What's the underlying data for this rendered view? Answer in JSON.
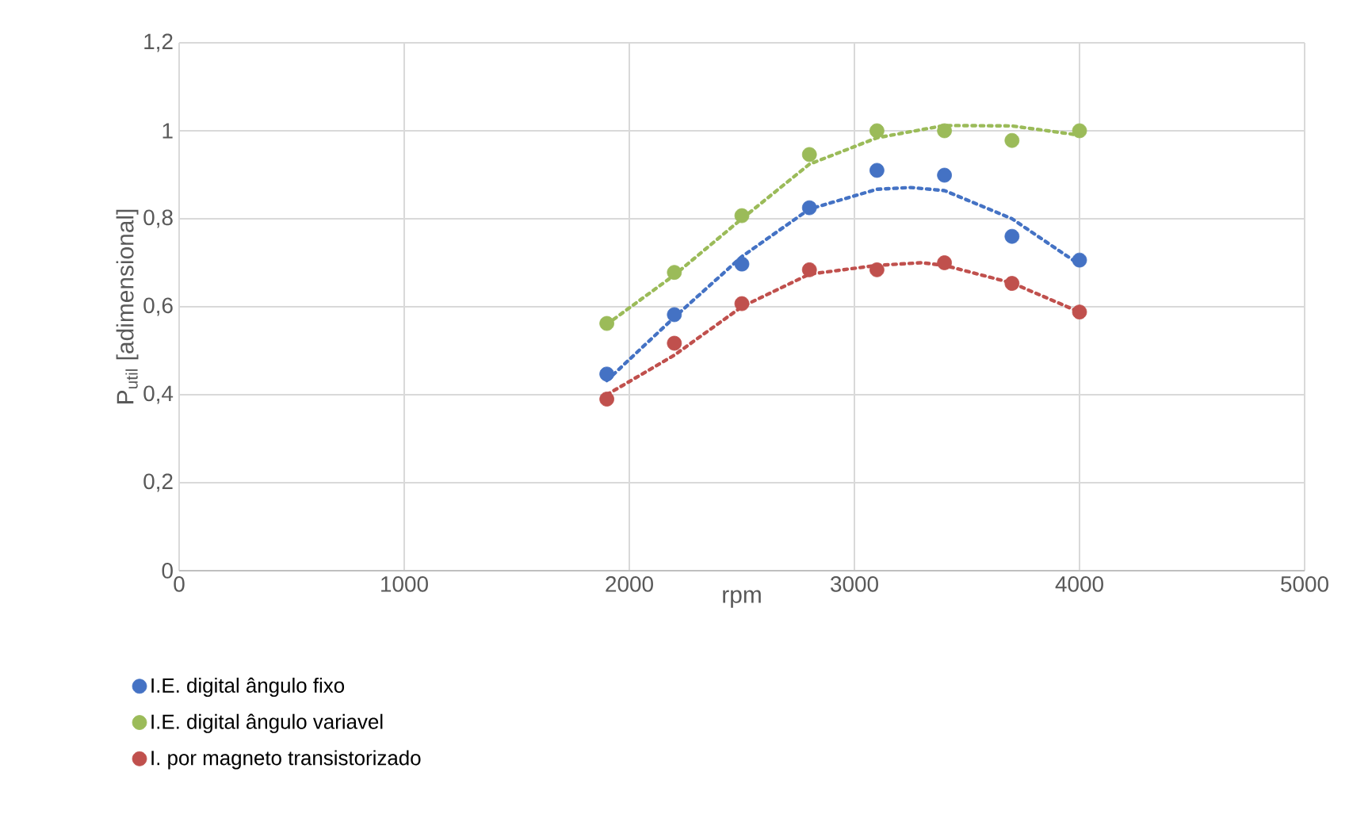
{
  "chart_data": {
    "type": "scatter",
    "xlabel": "rpm",
    "ylabel": "P$_{util}$ [adimensional]",
    "xlim": [
      0,
      5000
    ],
    "xticks": [
      0,
      1000,
      2000,
      3000,
      4000,
      5000
    ],
    "ylim": [
      0,
      1.2
    ],
    "yticks": [
      0,
      {
        "value": 0.2,
        "label": "0,2"
      },
      {
        "value": 0.4,
        "label": "0,4"
      },
      {
        "value": 0.6,
        "label": "0,6"
      },
      {
        "value": 0.8,
        "label": "0,8"
      },
      1,
      {
        "value": 1.2,
        "label": "1,2"
      }
    ],
    "grid": true,
    "legend": "bottom",
    "marker": "circle",
    "series": [
      {
        "name": "I.E. digital ângulo fixo",
        "color": "#4472c4",
        "x": [
          1900,
          2200,
          2500,
          2800,
          3100,
          3400,
          3700,
          4000
        ],
        "values": [
          0.447,
          0.582,
          0.697,
          0.825,
          0.91,
          0.899,
          0.76,
          0.706
        ]
      },
      {
        "name": "I.E. digital ângulo variavel",
        "color": "#9bbb59",
        "x": [
          1900,
          2200,
          2500,
          2800,
          3100,
          3400,
          3700,
          4000
        ],
        "values": [
          0.562,
          0.678,
          0.807,
          0.946,
          1.0,
          1.0,
          0.978,
          1.0
        ]
      },
      {
        "name": "I. por magneto transistorizado",
        "color": "#c0504d",
        "x": [
          1900,
          2200,
          2500,
          2800,
          3100,
          3400,
          3700,
          4000
        ],
        "values": [
          0.39,
          0.517,
          0.607,
          0.684,
          0.684,
          0.7,
          0.653,
          0.588
        ]
      },
      {
        "type": "line",
        "line_style": "dotted",
        "marker": "none",
        "color": "#4472c4",
        "x": [
          1900,
          2200,
          2500,
          2800,
          3100,
          3250,
          3400,
          3700,
          4000
        ],
        "values": [
          0.432,
          0.576,
          0.714,
          0.822,
          0.867,
          0.871,
          0.864,
          0.8,
          0.696
        ]
      },
      {
        "type": "line",
        "line_style": "dotted",
        "marker": "none",
        "color": "#9bbb59",
        "x": [
          1900,
          2200,
          2500,
          2800,
          3100,
          3400,
          3700,
          4000
        ],
        "values": [
          0.56,
          0.672,
          0.8,
          0.924,
          0.984,
          1.012,
          1.011,
          0.99
        ]
      },
      {
        "type": "line",
        "line_style": "dotted",
        "marker": "none",
        "color": "#c0504d",
        "x": [
          1900,
          2200,
          2500,
          2800,
          3100,
          3300,
          3400,
          3700,
          4000
        ],
        "values": [
          0.4,
          0.49,
          0.6,
          0.674,
          0.694,
          0.7,
          0.694,
          0.654,
          0.588
        ]
      }
    ]
  }
}
